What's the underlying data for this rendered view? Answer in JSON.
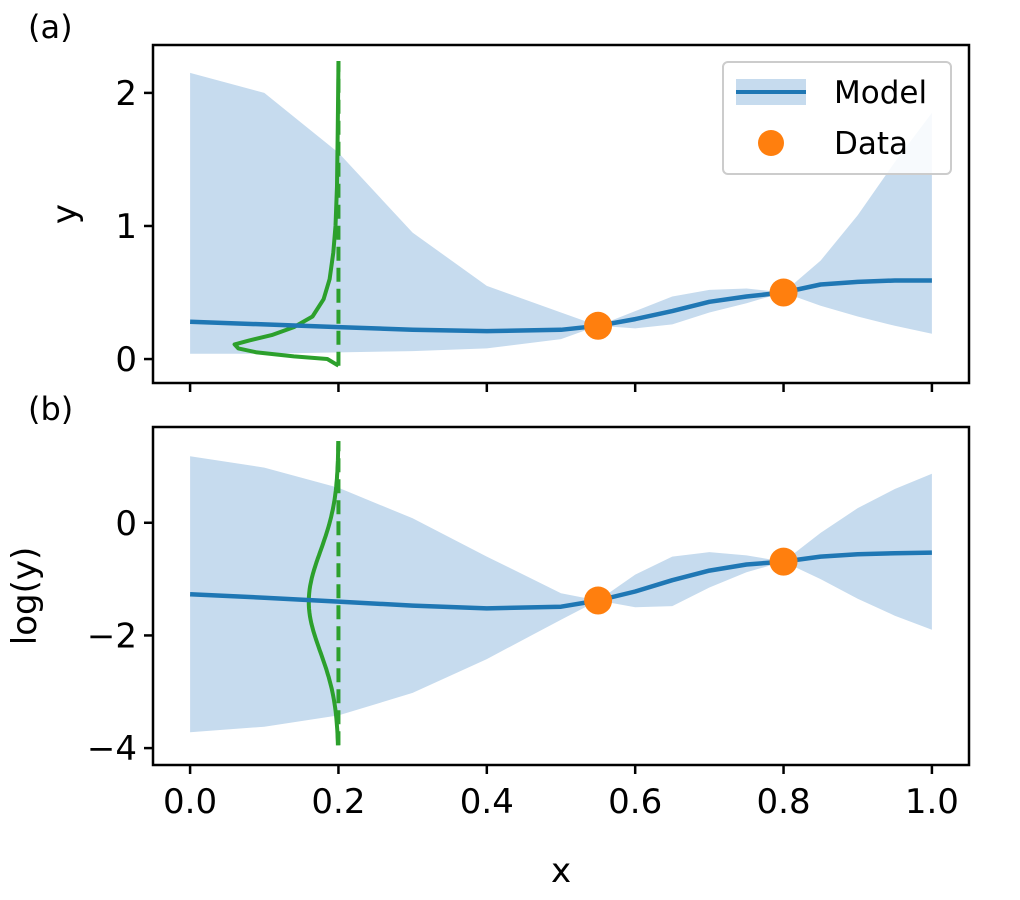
{
  "chart_data": [
    {
      "panel_label": "(a)",
      "type": "line",
      "ylabel": "y",
      "xlim": [
        -0.05,
        1.05
      ],
      "ylim": [
        -0.18,
        2.36
      ],
      "xticks": [
        0.0,
        0.2,
        0.4,
        0.6,
        0.8,
        1.0
      ],
      "yticks": [
        0,
        1,
        2
      ],
      "ytick_labels": [
        "0",
        "1",
        "2"
      ],
      "show_xtick_labels": false,
      "legend": {
        "placement": "top-right",
        "entries": [
          "Model",
          "Data"
        ]
      },
      "series": [
        {
          "name": "Model",
          "kind": "mean-line-with-band",
          "color": "#1f77b4",
          "band_color": "#c6dbee",
          "x": [
            0.0,
            0.1,
            0.2,
            0.3,
            0.4,
            0.5,
            0.55,
            0.6,
            0.65,
            0.7,
            0.75,
            0.8,
            0.85,
            0.9,
            0.95,
            1.0
          ],
          "mean": [
            0.28,
            0.26,
            0.24,
            0.22,
            0.21,
            0.22,
            0.25,
            0.3,
            0.36,
            0.43,
            0.47,
            0.5,
            0.56,
            0.58,
            0.59,
            0.59
          ],
          "lower": [
            0.04,
            0.04,
            0.05,
            0.06,
            0.08,
            0.15,
            0.25,
            0.23,
            0.26,
            0.35,
            0.42,
            0.5,
            0.4,
            0.32,
            0.25,
            0.19
          ],
          "upper": [
            2.15,
            2.0,
            1.55,
            0.95,
            0.55,
            0.35,
            0.25,
            0.36,
            0.47,
            0.52,
            0.53,
            0.5,
            0.74,
            1.08,
            1.48,
            1.85
          ]
        },
        {
          "name": "Data",
          "kind": "points",
          "color": "#ff7f0e",
          "x": [
            0.55,
            0.8
          ],
          "y": [
            0.25,
            0.5
          ]
        },
        {
          "kind": "density-curve",
          "color": "#2ca02c",
          "x_position": 0.2,
          "points": [
            {
              "y": -0.05,
              "d": 0.0
            },
            {
              "y": 0.0,
              "d": 0.015
            },
            {
              "y": 0.02,
              "d": 0.06
            },
            {
              "y": 0.05,
              "d": 0.11
            },
            {
              "y": 0.08,
              "d": 0.135
            },
            {
              "y": 0.11,
              "d": 0.14
            },
            {
              "y": 0.14,
              "d": 0.12
            },
            {
              "y": 0.18,
              "d": 0.09
            },
            {
              "y": 0.24,
              "d": 0.06
            },
            {
              "y": 0.32,
              "d": 0.035
            },
            {
              "y": 0.45,
              "d": 0.02
            },
            {
              "y": 0.6,
              "d": 0.012
            },
            {
              "y": 0.8,
              "d": 0.007
            },
            {
              "y": 1.0,
              "d": 0.004
            },
            {
              "y": 1.3,
              "d": 0.002
            },
            {
              "y": 1.7,
              "d": 0.001
            },
            {
              "y": 2.24,
              "d": 0.0
            }
          ]
        }
      ]
    },
    {
      "panel_label": "(b)",
      "type": "line",
      "ylabel": "log(y)",
      "xlabel": "x",
      "xlim": [
        -0.05,
        1.05
      ],
      "ylim": [
        -4.3,
        1.7
      ],
      "xticks": [
        0.0,
        0.2,
        0.4,
        0.6,
        0.8,
        1.0
      ],
      "xtick_labels": [
        "0.0",
        "0.2",
        "0.4",
        "0.6",
        "0.8",
        "1.0"
      ],
      "yticks": [
        0,
        -2,
        -4
      ],
      "ytick_labels": [
        "0",
        "−2",
        "−4"
      ],
      "series": [
        {
          "name": "Model",
          "kind": "mean-line-with-band",
          "color": "#1f77b4",
          "band_color": "#c6dbee",
          "x": [
            0.0,
            0.1,
            0.2,
            0.3,
            0.4,
            0.5,
            0.55,
            0.6,
            0.65,
            0.7,
            0.75,
            0.8,
            0.85,
            0.9,
            0.95,
            1.0
          ],
          "mean": [
            -1.27,
            -1.33,
            -1.4,
            -1.47,
            -1.52,
            -1.49,
            -1.38,
            -1.22,
            -1.02,
            -0.85,
            -0.74,
            -0.69,
            -0.6,
            -0.56,
            -0.54,
            -0.53
          ],
          "lower": [
            -3.72,
            -3.62,
            -3.42,
            -3.02,
            -2.42,
            -1.72,
            -1.38,
            -1.5,
            -1.48,
            -1.15,
            -0.88,
            -0.69,
            -1.0,
            -1.35,
            -1.65,
            -1.9
          ],
          "upper": [
            1.18,
            0.98,
            0.62,
            0.08,
            -0.6,
            -1.25,
            -1.38,
            -0.92,
            -0.6,
            -0.52,
            -0.58,
            -0.69,
            -0.18,
            0.26,
            0.6,
            0.87
          ]
        },
        {
          "name": "Data",
          "kind": "points",
          "color": "#ff7f0e",
          "x": [
            0.55,
            0.8
          ],
          "y": [
            -1.38,
            -0.69
          ]
        },
        {
          "kind": "density-curve",
          "color": "#2ca02c",
          "x_position": 0.2,
          "center": -1.4,
          "sigma": 0.9,
          "peak": 0.04,
          "y_range": [
            -3.95,
            1.45
          ]
        }
      ]
    }
  ]
}
